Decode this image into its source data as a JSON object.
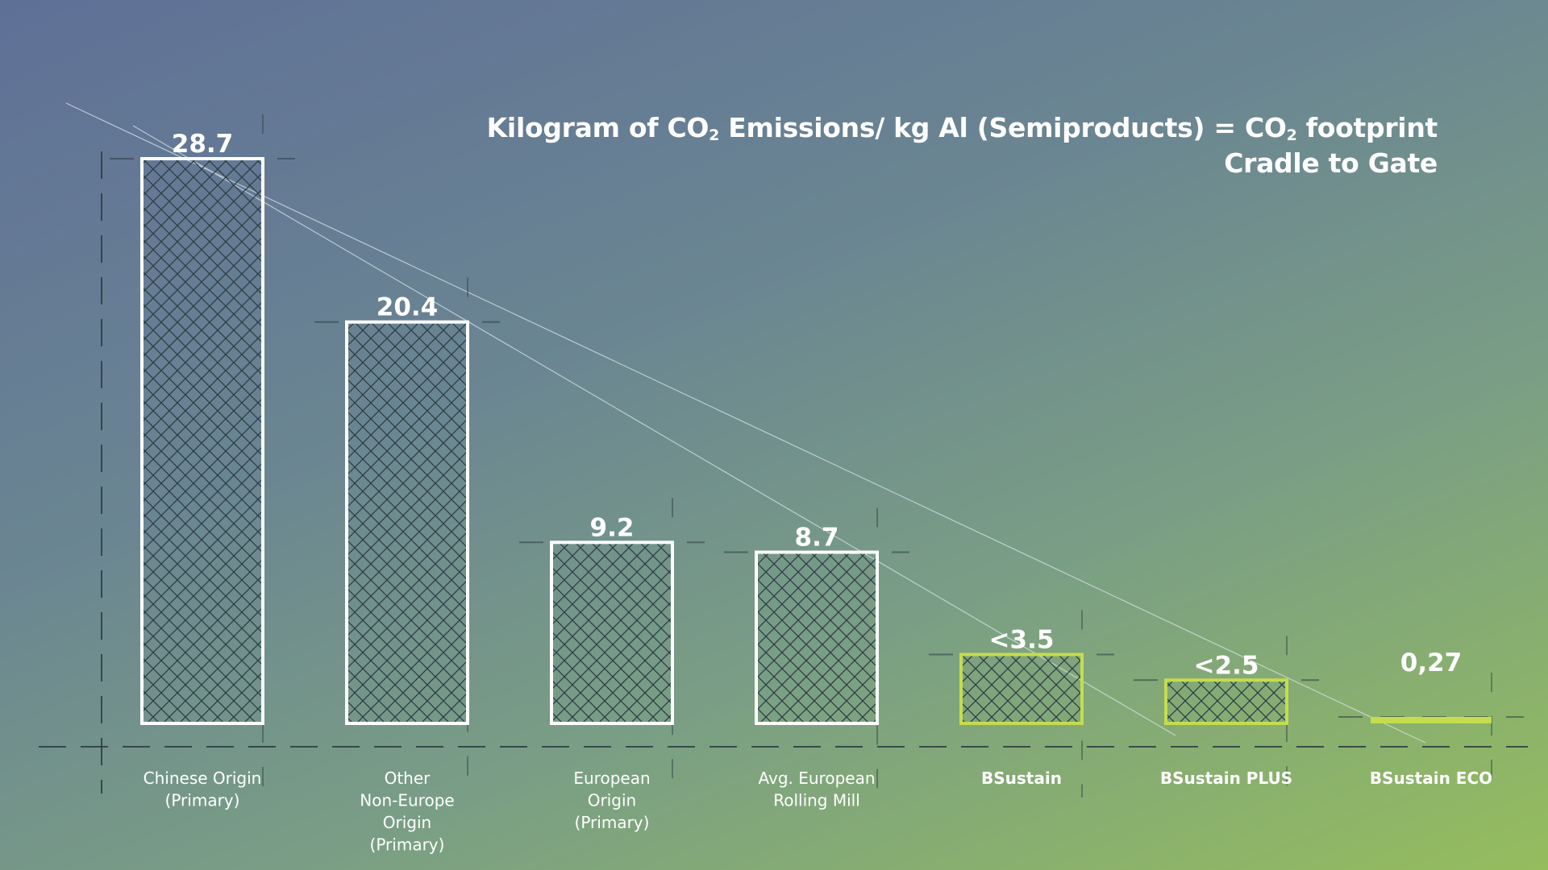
{
  "chart_data": {
    "type": "bar",
    "title_line1_part1": "Kilogram of CO",
    "title_line1_sub": "2",
    "title_line1_part2": " Emissions/ kg Al (Semiproducts) = CO",
    "title_line1_sub2": "2",
    "title_line1_part3": " footprint",
    "title_line2": "Cradle to Gate",
    "ylim": [
      0,
      28.7
    ],
    "grid": false,
    "bars": [
      {
        "category": [
          "Chinese Origin",
          "(Primary)"
        ],
        "value": 28.7,
        "label": "28.7",
        "highlight": false,
        "bold": false
      },
      {
        "category": [
          "Other",
          "Non-Europe",
          "Origin",
          "(Primary)"
        ],
        "value": 20.4,
        "label": "20.4",
        "highlight": false,
        "bold": false
      },
      {
        "category": [
          "European",
          "Origin",
          "(Primary)"
        ],
        "value": 9.2,
        "label": "9.2",
        "highlight": false,
        "bold": false
      },
      {
        "category": [
          "Avg. European",
          "Rolling Mill"
        ],
        "value": 8.7,
        "label": "8.7",
        "highlight": false,
        "bold": false
      },
      {
        "category": [
          "BSustain"
        ],
        "value": 3.5,
        "label": "<3.5",
        "highlight": true,
        "bold": true
      },
      {
        "category": [
          "BSustain PLUS"
        ],
        "value": 2.2,
        "label": "<2.5",
        "highlight": true,
        "bold": true
      },
      {
        "category": [
          "BSustain ECO"
        ],
        "value": 0.27,
        "label": "0,27",
        "highlight": true,
        "bold": true
      }
    ],
    "colors": {
      "bar_outline": "#ffffff",
      "highlight_outline": "#c5dc4e",
      "hatch": "#2b3d44",
      "text": "#ffffff"
    }
  }
}
